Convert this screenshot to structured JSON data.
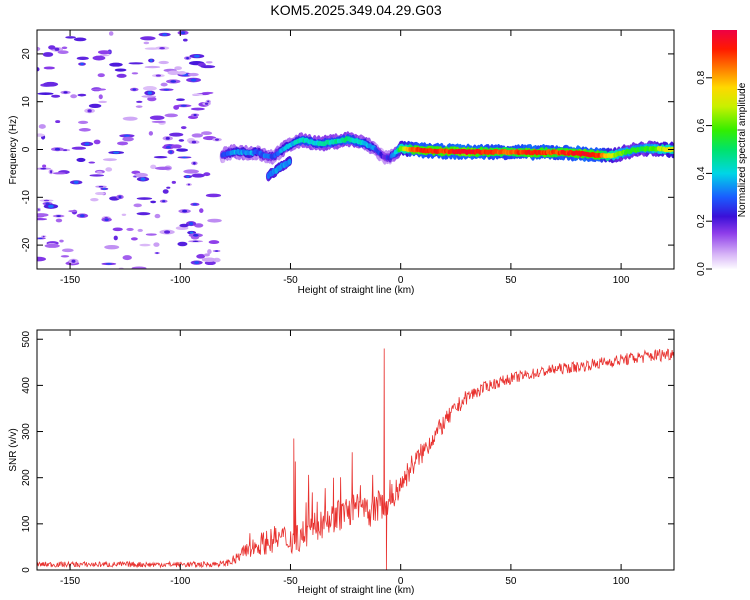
{
  "title": "KOM5.2025.349.04.29.G03",
  "colors": {
    "snr_line": "#e8312e",
    "background": "#ffffff",
    "axes": "#000000"
  },
  "chart_data": [
    {
      "type": "heatmap",
      "name": "spectrogram",
      "xlabel": "Height of straight line (km)",
      "ylabel": "Frequency (Hz)",
      "xlim": [
        -165,
        124
      ],
      "ylim": [
        -25,
        25
      ],
      "xticks": [
        -150,
        -100,
        -50,
        0,
        50,
        100
      ],
      "xtick_labels": [
        "-150",
        "-100",
        "-50",
        "0",
        "50",
        "100"
      ],
      "yticks": [
        -20,
        -10,
        0,
        10,
        20
      ],
      "ytick_labels": [
        "-20",
        "-10",
        "0",
        "10",
        "20"
      ],
      "colorbar": {
        "label": "Normalized spectral amplitude",
        "range": [
          0,
          1
        ],
        "ticks": [
          0.0,
          0.2,
          0.4,
          0.6,
          0.8
        ],
        "tick_labels": [
          "0.0",
          "0.2",
          "0.4",
          "0.6",
          "0.8"
        ],
        "colormap": "rainbow (violet to red)"
      },
      "noise_region": {
        "x_range": [
          -165,
          -83
        ],
        "freq_range": [
          -25,
          25
        ],
        "amplitude": 0.1
      },
      "signal_track": {
        "x": [
          -81,
          -78,
          -75,
          -71,
          -68,
          -65,
          -62,
          -58,
          -55,
          -52,
          -48,
          -44,
          -40,
          -36,
          -32,
          -28,
          -24,
          -20,
          -16,
          -12,
          -8,
          -5,
          -2,
          0,
          5,
          10,
          20,
          30,
          40,
          50,
          60,
          70,
          80,
          90,
          95,
          100,
          105,
          110,
          115,
          120,
          124
        ],
        "freq": [
          -1.2,
          -0.8,
          -0.5,
          -0.6,
          -0.8,
          -0.5,
          -1.2,
          -1.5,
          -0.5,
          0.5,
          1.5,
          2.0,
          1.5,
          1.2,
          1.5,
          1.8,
          2.2,
          1.8,
          1.2,
          0.2,
          -1.5,
          -1.8,
          -0.5,
          0.2,
          0.0,
          -0.2,
          -0.4,
          -0.5,
          -0.5,
          -0.5,
          -0.6,
          -0.6,
          -0.8,
          -1.2,
          -1.4,
          -0.8,
          -0.2,
          0.1,
          0.2,
          0.0,
          -0.1
        ],
        "amplitude": [
          0.25,
          0.3,
          0.35,
          0.35,
          0.35,
          0.3,
          0.3,
          0.28,
          0.32,
          0.38,
          0.4,
          0.45,
          0.42,
          0.42,
          0.45,
          0.45,
          0.48,
          0.44,
          0.4,
          0.32,
          0.2,
          0.25,
          0.4,
          0.62,
          0.85,
          0.95,
          0.9,
          0.98,
          0.9,
          0.85,
          0.95,
          0.88,
          0.95,
          0.92,
          0.7,
          0.6,
          0.55,
          0.55,
          0.6,
          0.7,
          0.72
        ]
      },
      "branch_track": {
        "x": [
          -60,
          -57,
          -54,
          -50
        ],
        "freq": [
          -5.5,
          -4.5,
          -3.5,
          -2.5
        ],
        "amplitude": [
          0.32,
          0.34,
          0.34,
          0.32
        ]
      }
    },
    {
      "type": "line",
      "name": "snr",
      "xlabel": "Height of straight line (km)",
      "ylabel": "SNR (v/v)",
      "xlim": [
        -165,
        124
      ],
      "ylim": [
        0,
        520
      ],
      "xticks": [
        -150,
        -100,
        -50,
        0,
        50,
        100
      ],
      "xtick_labels": [
        "-150",
        "-100",
        "-50",
        "0",
        "50",
        "100"
      ],
      "yticks": [
        0,
        100,
        200,
        300,
        400,
        500
      ],
      "ytick_labels": [
        "0",
        "100",
        "200",
        "300",
        "400",
        "500"
      ],
      "trend": {
        "x": [
          -165,
          -120,
          -90,
          -80,
          -75,
          -70,
          -65,
          -60,
          -55,
          -50,
          -45,
          -40,
          -35,
          -30,
          -25,
          -20,
          -15,
          -10,
          -7,
          -5,
          0,
          5,
          10,
          15,
          20,
          25,
          30,
          40,
          50,
          60,
          70,
          80,
          90,
          100,
          110,
          124
        ],
        "y": [
          12,
          12,
          12,
          14,
          22,
          42,
          55,
          62,
          70,
          65,
          75,
          90,
          105,
          115,
          125,
          135,
          120,
          140,
          145,
          150,
          185,
          225,
          255,
          290,
          320,
          350,
          375,
          400,
          415,
          425,
          435,
          440,
          448,
          455,
          462,
          470
        ]
      },
      "noise_amplitude": {
        "x": [
          -165,
          -80,
          -75,
          -60,
          -40,
          -20,
          -7,
          0,
          20,
          40,
          80,
          124
        ],
        "y": [
          6,
          6,
          12,
          28,
          35,
          35,
          32,
          28,
          20,
          12,
          12,
          15
        ]
      },
      "spikes": [
        {
          "x": -48.5,
          "y": 285
        },
        {
          "x": -47.8,
          "y": 235
        },
        {
          "x": -30.5,
          "y": 200
        },
        {
          "x": -22,
          "y": 255
        },
        {
          "x": -7.5,
          "y": 480
        },
        {
          "x": -6.5,
          "y": 0
        }
      ]
    }
  ]
}
